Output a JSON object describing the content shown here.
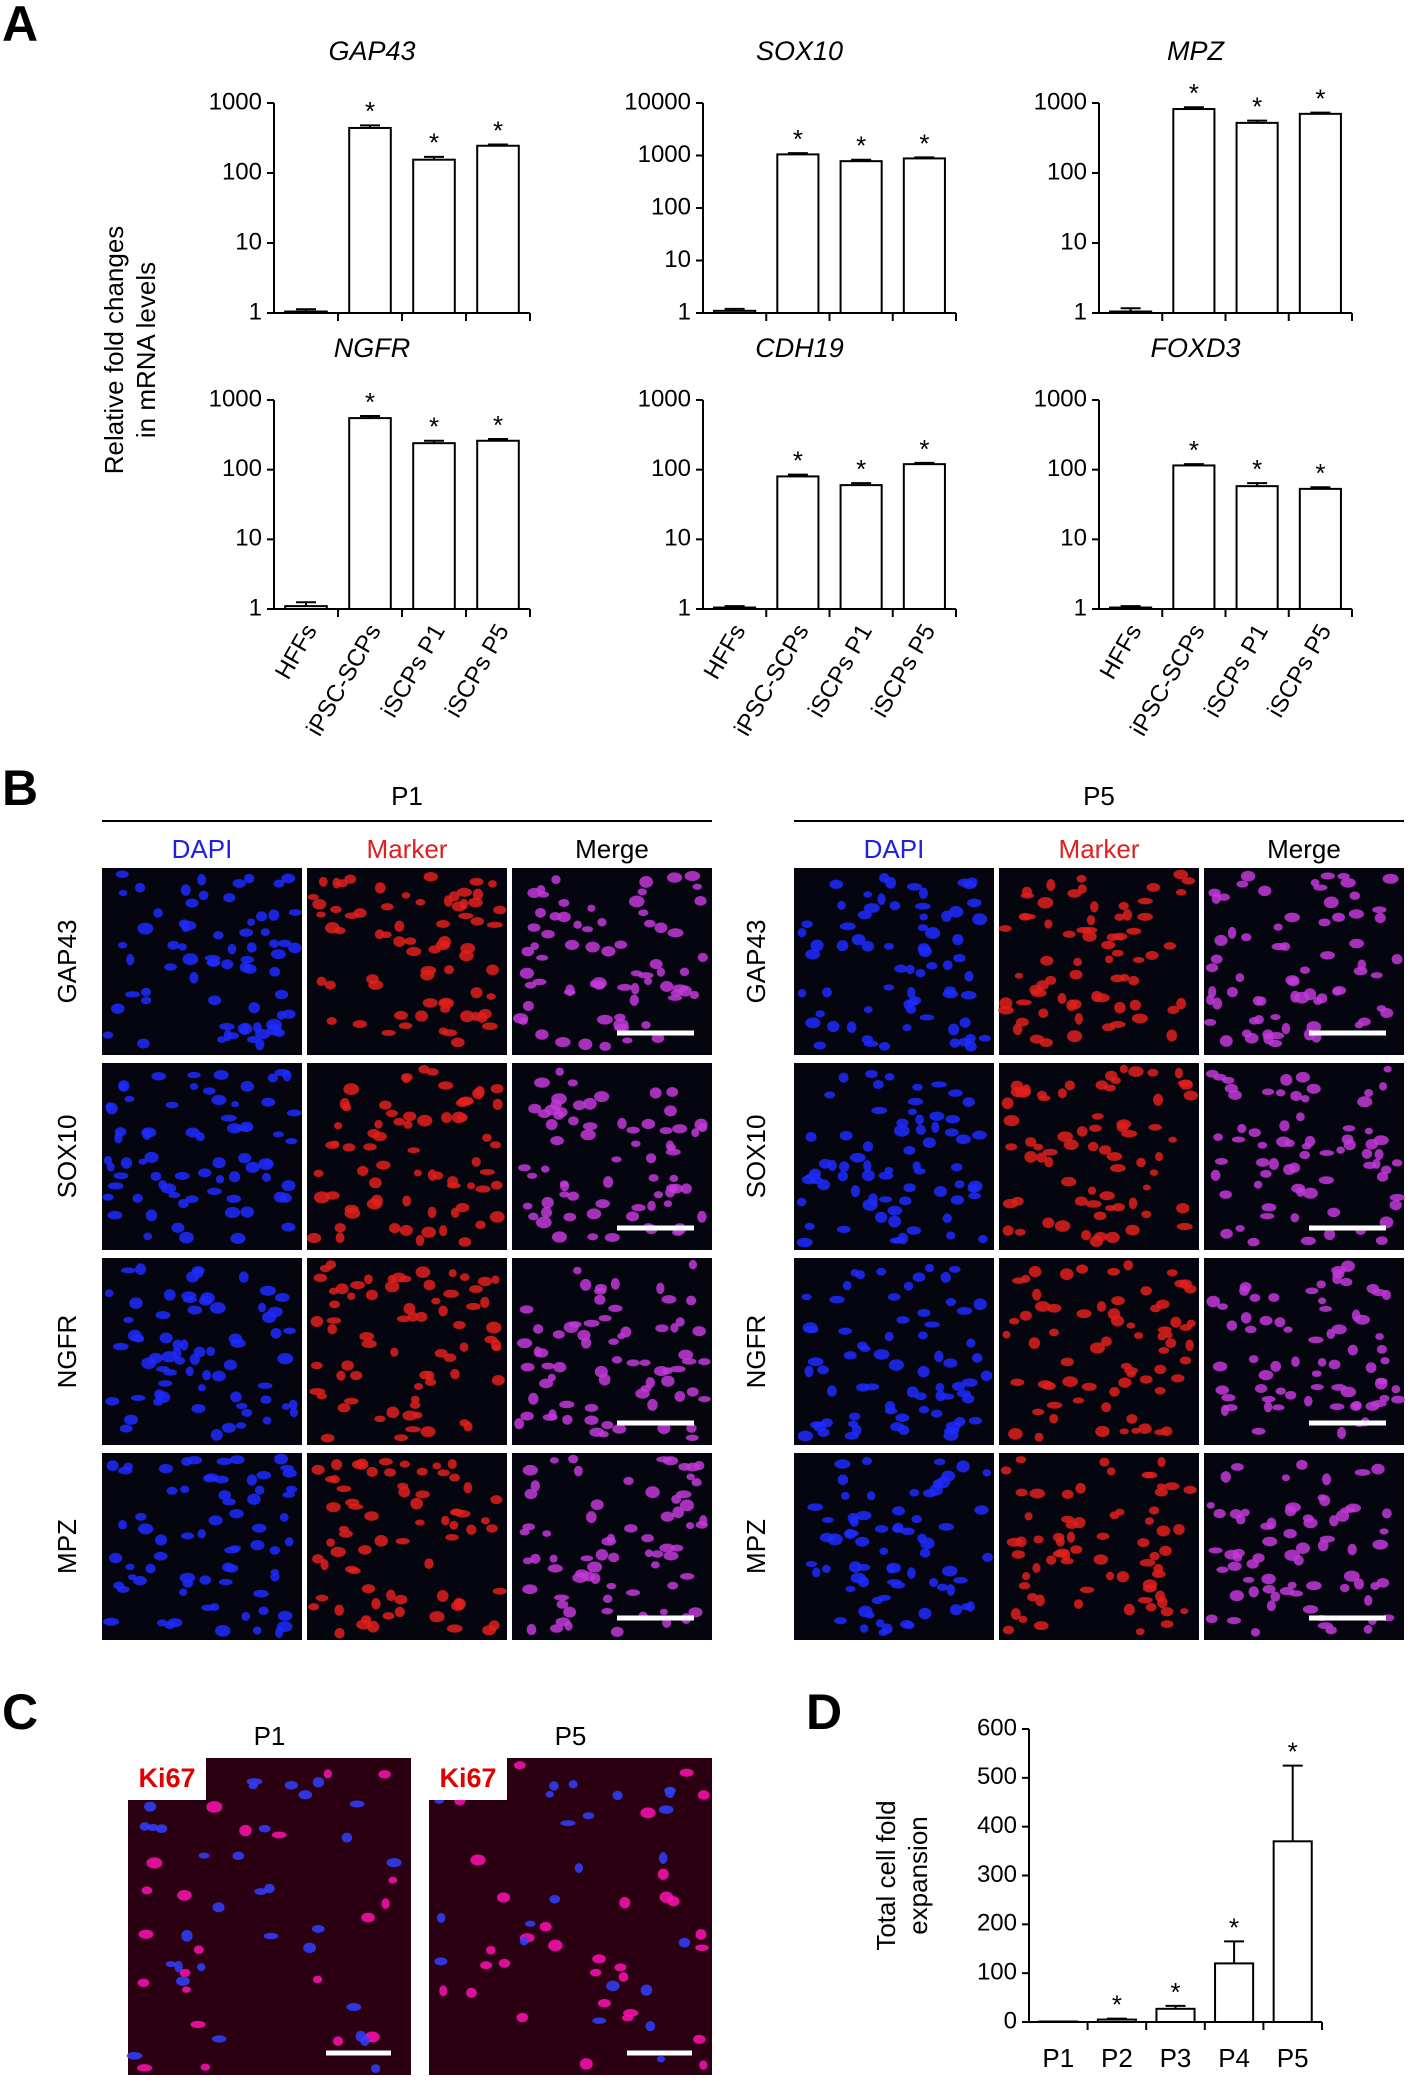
{
  "panel_labels": [
    "A",
    "B",
    "C",
    "D"
  ],
  "chart_data": [
    {
      "type": "bar",
      "title": "GAP43",
      "log_scale": true,
      "ylim": [
        1,
        1000
      ],
      "yticks": [
        1,
        10,
        100,
        1000
      ],
      "ylabel": [
        "Relative fold changes",
        "in mRNA levels"
      ],
      "values": [
        1.05,
        440,
        155,
        245
      ],
      "errors": [
        0.08,
        40,
        15,
        10
      ],
      "significance": [
        null,
        "*",
        "*",
        "*"
      ],
      "color": "#ffffff"
    },
    {
      "type": "bar",
      "title": "SOX10",
      "log_scale": true,
      "ylim": [
        1,
        10000
      ],
      "yticks": [
        1,
        10,
        100,
        1000,
        10000
      ],
      "values": [
        1.1,
        1050,
        780,
        880
      ],
      "errors": [
        0.1,
        60,
        50,
        40
      ],
      "significance": [
        null,
        "*",
        "*",
        "*"
      ],
      "color": "#ffffff"
    },
    {
      "type": "bar",
      "title": "MPZ",
      "log_scale": true,
      "ylim": [
        1,
        1000
      ],
      "yticks": [
        1,
        10,
        100,
        1000
      ],
      "values": [
        1.05,
        820,
        520,
        700
      ],
      "errors": [
        0.12,
        50,
        40,
        30
      ],
      "significance": [
        null,
        "*",
        "*",
        "*"
      ],
      "color": "#ffffff"
    },
    {
      "type": "bar",
      "title": "NGFR",
      "log_scale": true,
      "ylim": [
        1,
        1000
      ],
      "yticks": [
        1,
        10,
        100,
        1000
      ],
      "categories": [
        "HFFs",
        "iPSC-SCPs",
        "iSCPs P1",
        "iSCPs P5"
      ],
      "values": [
        1.1,
        550,
        240,
        260
      ],
      "errors": [
        0.15,
        40,
        20,
        15
      ],
      "significance": [
        null,
        "*",
        "*",
        "*"
      ],
      "color": "#ffffff"
    },
    {
      "type": "bar",
      "title": "CDH19",
      "log_scale": true,
      "ylim": [
        1,
        1000
      ],
      "yticks": [
        1,
        10,
        100,
        1000
      ],
      "categories": [
        "HFFs",
        "iPSC-SCPs",
        "iSCPs P1",
        "iSCPs P5"
      ],
      "values": [
        1.05,
        80,
        60,
        120
      ],
      "errors": [
        0.05,
        5,
        4,
        5
      ],
      "significance": [
        null,
        "*",
        "*",
        "*"
      ],
      "color": "#ffffff"
    },
    {
      "type": "bar",
      "title": "FOXD3",
      "log_scale": true,
      "ylim": [
        1,
        1000
      ],
      "yticks": [
        1,
        10,
        100,
        1000
      ],
      "categories": [
        "HFFs",
        "iPSC-SCPs",
        "iSCPs P1",
        "iSCPs P5"
      ],
      "values": [
        1.05,
        115,
        58,
        53
      ],
      "errors": [
        0.05,
        5,
        6,
        3
      ],
      "significance": [
        null,
        "*",
        "*",
        "*"
      ],
      "color": "#ffffff"
    },
    {
      "type": "bar",
      "log_scale": false,
      "ylim": [
        0,
        600
      ],
      "yticks": [
        0,
        100,
        200,
        300,
        400,
        500,
        600
      ],
      "ylabel": [
        "Total cell fold",
        "expansion"
      ],
      "categories": [
        "P1",
        "P2",
        "P3",
        "P4",
        "P5"
      ],
      "values": [
        1,
        5,
        27,
        120,
        370
      ],
      "errors": [
        0,
        2,
        6,
        45,
        155
      ],
      "significance": [
        null,
        "*",
        "*",
        "*",
        "*"
      ],
      "color": "#ffffff"
    }
  ],
  "panel_b": {
    "groups": [
      {
        "title": "P1",
        "channels": [
          "DAPI",
          "Marker",
          "Merge"
        ],
        "markers": [
          "GAP43",
          "SOX10",
          "NGFR",
          "MPZ"
        ]
      },
      {
        "title": "P5",
        "channels": [
          "DAPI",
          "Marker",
          "Merge"
        ],
        "markers": [
          "GAP43",
          "SOX10",
          "NGFR",
          "MPZ"
        ]
      }
    ]
  },
  "panel_c": {
    "images": [
      {
        "title": "P1",
        "label": "Ki67"
      },
      {
        "title": "P5",
        "label": "Ki67"
      }
    ]
  }
}
